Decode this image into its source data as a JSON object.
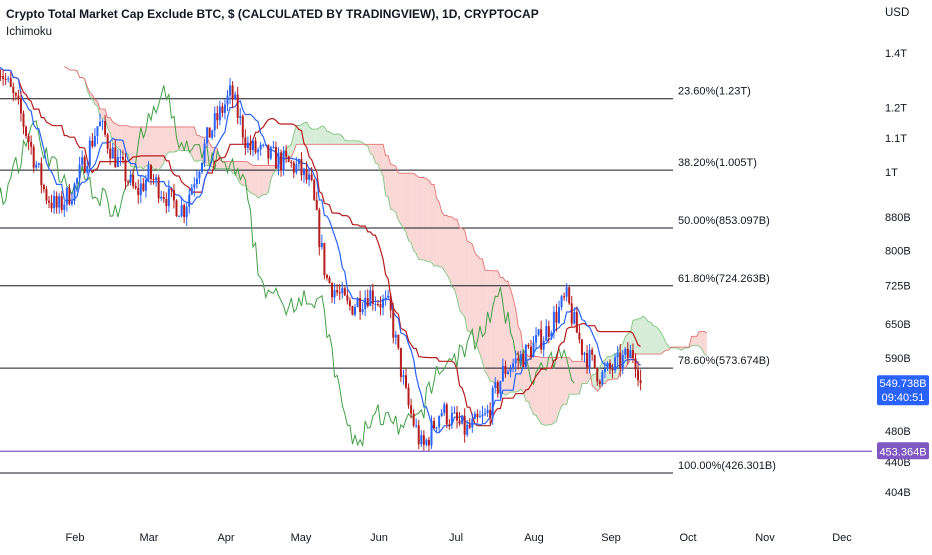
{
  "header": {
    "title": "Crypto Total Market Cap Exclude BTC, $ (CALCULATED BY TRADINGVIEW), 1D, CRYPTOCAP",
    "indicator": "Ichimoku",
    "currency": "USD"
  },
  "price_labels": {
    "current_price": "549.738B",
    "countdown": "09:40:51",
    "horizontal_line": "453.364B"
  },
  "colors": {
    "candle_up": "#2962ff",
    "candle_down": "#b71c1c",
    "kijun": "#b71c1c",
    "tenkan": "#2962ff",
    "chikou": "#43a047",
    "cloud_bear": "#f7c9c6",
    "cloud_bull": "#c8e6c9",
    "price_tag": "#2962ff",
    "purple_line": "#7e57c2"
  },
  "chart_data": {
    "type": "candlestick",
    "indicator": "Ichimoku",
    "yscale": "log",
    "ylabel": "USD",
    "yticks": [
      "1.4T",
      "1.2T",
      "1.1T",
      "1T",
      "880B",
      "800B",
      "725B",
      "650B",
      "590B",
      "480B",
      "440B",
      "404B"
    ],
    "ytick_values": [
      1400,
      1200,
      1100,
      1000,
      880,
      800,
      725,
      650,
      590,
      480,
      440,
      404
    ],
    "xticks": [
      "Feb",
      "Mar",
      "Apr",
      "May",
      "Jun",
      "Jul",
      "Aug",
      "Sep",
      "Oct",
      "Nov",
      "Dec"
    ],
    "fibonacci_levels": [
      {
        "label": "23.60%(1.23T)",
        "value": 1230
      },
      {
        "label": "38.20%(1.005T)",
        "value": 1005
      },
      {
        "label": "50.00%(853.097B)",
        "value": 853.097
      },
      {
        "label": "61.80%(724.263B)",
        "value": 724.263
      },
      {
        "label": "78.60%(573.674B)",
        "value": 573.674
      },
      {
        "label": "100.00%(426.301B)",
        "value": 426.301
      }
    ],
    "horizontal_line": 453.364,
    "last_price": 549.738,
    "price_path": [
      {
        "date": "Jan 01",
        "close": 1360
      },
      {
        "date": "Jan 10",
        "close": 1180
      },
      {
        "date": "Jan 20",
        "close": 940
      },
      {
        "date": "Jan 25",
        "close": 900
      },
      {
        "date": "Feb 01",
        "close": 960
      },
      {
        "date": "Feb 10",
        "close": 1150
      },
      {
        "date": "Feb 15",
        "close": 1060
      },
      {
        "date": "Feb 24",
        "close": 940
      },
      {
        "date": "Mar 01",
        "close": 990
      },
      {
        "date": "Mar 10",
        "close": 920
      },
      {
        "date": "Mar 15",
        "close": 900
      },
      {
        "date": "Mar 25",
        "close": 1110
      },
      {
        "date": "Apr 03",
        "close": 1250
      },
      {
        "date": "Apr 10",
        "close": 1070
      },
      {
        "date": "Apr 20",
        "close": 1040
      },
      {
        "date": "Apr 30",
        "close": 1010
      },
      {
        "date": "May 05",
        "close": 960
      },
      {
        "date": "May 11",
        "close": 740
      },
      {
        "date": "May 20",
        "close": 680
      },
      {
        "date": "May 28",
        "close": 710
      },
      {
        "date": "Jun 05",
        "close": 680
      },
      {
        "date": "Jun 12",
        "close": 520
      },
      {
        "date": "Jun 18",
        "close": 455
      },
      {
        "date": "Jun 25",
        "close": 510
      },
      {
        "date": "Jul 05",
        "close": 480
      },
      {
        "date": "Jul 13",
        "close": 500
      },
      {
        "date": "Jul 20",
        "close": 570
      },
      {
        "date": "Jul 28",
        "close": 595
      },
      {
        "date": "Aug 05",
        "close": 630
      },
      {
        "date": "Aug 14",
        "close": 700
      },
      {
        "date": "Aug 20",
        "close": 610
      },
      {
        "date": "Aug 28",
        "close": 560
      },
      {
        "date": "Sep 05",
        "close": 585
      },
      {
        "date": "Sep 10",
        "close": 600
      },
      {
        "date": "Sep 13",
        "close": 550
      }
    ]
  }
}
